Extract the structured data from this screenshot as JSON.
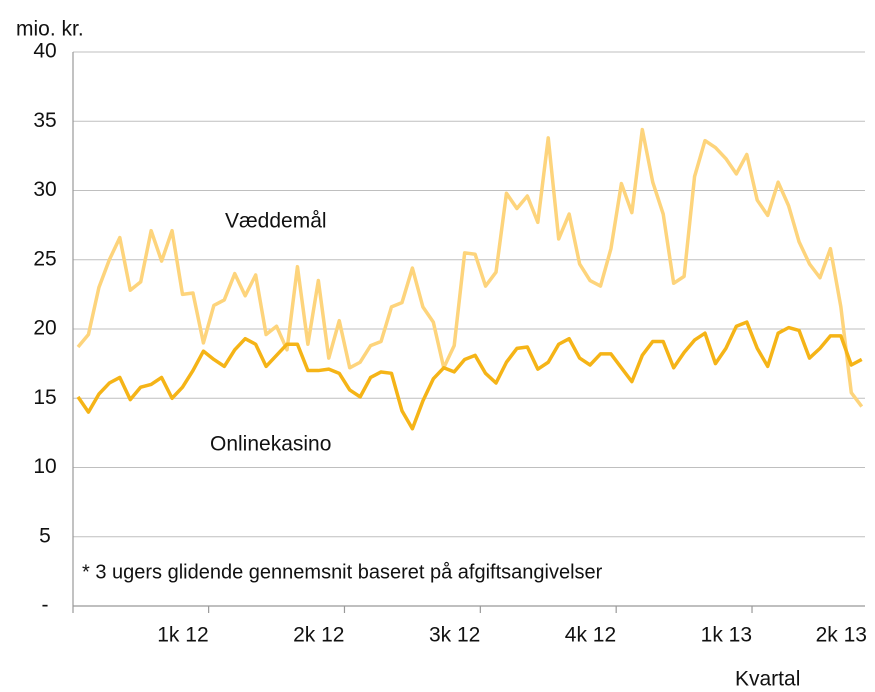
{
  "chart_data": {
    "type": "line",
    "y_label": "mio. kr.",
    "x_label": "Kvartal",
    "annotations": [
      "Væddemål",
      "Onlinekasino",
      "* 3 ugers glidende gennemsnit baseret på afgiftsangivelser"
    ],
    "categories": [
      null,
      null,
      null,
      null,
      null,
      null,
      null,
      null,
      null,
      null,
      null,
      null,
      "1k 12",
      null,
      null,
      null,
      null,
      null,
      null,
      null,
      null,
      null,
      null,
      null,
      null,
      "2k 12",
      null,
      null,
      null,
      null,
      null,
      null,
      null,
      null,
      null,
      null,
      null,
      null,
      "3k 12",
      null,
      null,
      null,
      null,
      null,
      null,
      null,
      null,
      null,
      null,
      null,
      null,
      "4k 12",
      null,
      null,
      null,
      null,
      null,
      null,
      null,
      null,
      null,
      null,
      null,
      null,
      "1k 13",
      null,
      null,
      null,
      null,
      null,
      null,
      null,
      null,
      null,
      null,
      "2k 13"
    ],
    "series": [
      {
        "name": "Væddemål",
        "color": "#fdd47c",
        "values": [
          18.7,
          19.6,
          23,
          25,
          26.6,
          22.8,
          23.4,
          27.1,
          24.9,
          27.1,
          22.5,
          22.6,
          19.0,
          21.7,
          22.1,
          24.0,
          22.4,
          23.9,
          19.6,
          20.2,
          18.5,
          24.5,
          18.9,
          23.5,
          17.9,
          20.6,
          17.2,
          17.6,
          18.8,
          19.1,
          21.6,
          21.9,
          24.4,
          21.6,
          20.5,
          17.2,
          18.8,
          25.5,
          25.4,
          23.1,
          24.1,
          29.8,
          28.7,
          29.6,
          27.7,
          33.8,
          26.5,
          28.3,
          24.7,
          23.5,
          23.1,
          25.8,
          30.5,
          28.4,
          34.4,
          30.6,
          28.3,
          23.3,
          23.8,
          31.0,
          33.6,
          33.1,
          32.3,
          31.2,
          32.6,
          29.3,
          28.2,
          30.6,
          28.9,
          26.3,
          24.7,
          23.7,
          25.8,
          21.6,
          15.4,
          14.4
        ]
      },
      {
        "name": "Onlinekasino",
        "color": "#f5b417",
        "values": [
          15.1,
          14.0,
          15.3,
          16.1,
          16.5,
          14.9,
          15.8,
          16.0,
          16.5,
          15.0,
          15.8,
          17.0,
          18.4,
          17.8,
          17.3,
          18.5,
          19.3,
          18.9,
          17.3,
          18.1,
          18.9,
          18.9,
          17.0,
          17.0,
          17.1,
          16.8,
          15.6,
          15.1,
          16.5,
          16.9,
          16.8,
          14.1,
          12.8,
          14.8,
          16.4,
          17.2,
          16.9,
          17.8,
          18.1,
          16.8,
          16.1,
          17.6,
          18.6,
          18.7,
          17.1,
          17.6,
          18.9,
          19.3,
          17.9,
          17.4,
          18.2,
          18.2,
          17.2,
          16.2,
          18.1,
          19.1,
          19.1,
          17.2,
          18.3,
          19.2,
          19.7,
          17.5,
          18.6,
          20.2,
          20.5,
          18.6,
          17.3,
          19.7,
          20.1,
          19.9,
          17.9,
          18.6,
          19.5,
          19.5,
          17.4,
          17.8
        ]
      }
    ],
    "ylim": [
      0,
      40
    ],
    "yticks": [
      {
        "value": 0,
        "label": "-"
      },
      5,
      10,
      15,
      20,
      25,
      30,
      35,
      40
    ],
    "grid": true
  }
}
